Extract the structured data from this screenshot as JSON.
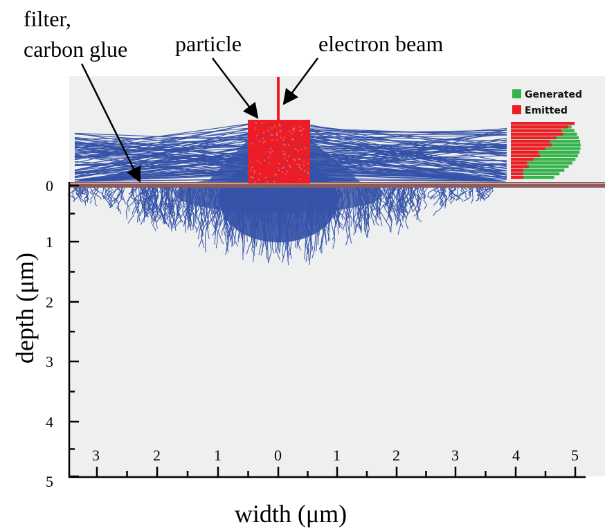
{
  "annotations": {
    "filter_line1": "filter,",
    "filter_line2": "carbon glue",
    "particle": "particle",
    "electron_beam": "electron beam"
  },
  "legend": {
    "generated": "Generated",
    "emitted": "Emitted"
  },
  "axes": {
    "xlabel": "width (μm)",
    "ylabel": "depth (μm)",
    "x_ticks": [
      "3",
      "2",
      "1",
      "0",
      "1",
      "2",
      "3",
      "4",
      "5"
    ],
    "y_ticks": [
      "0",
      "1",
      "2",
      "3",
      "4",
      "5"
    ]
  },
  "colors": {
    "trajectories": "#3552a8",
    "particle": "#ee1c24",
    "beam": "#ee1c24",
    "generated": "#36b34a",
    "emitted": "#ee1c24",
    "substrate": "#8b5a5a",
    "plot_background": "#eef0ef"
  }
}
